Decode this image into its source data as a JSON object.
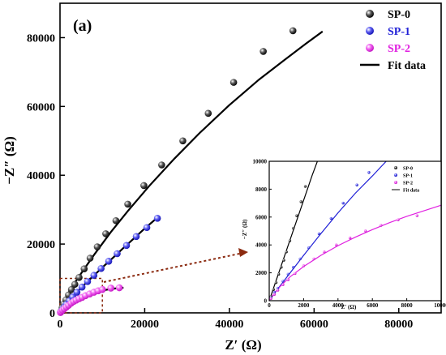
{
  "chart_data": [
    {
      "type": "scatter",
      "panel_label": "(a)",
      "xlabel": "Z′ (Ω)",
      "ylabel": "−Z″ (Ω)",
      "xlim": [
        0,
        90000
      ],
      "ylim": [
        0,
        90000
      ],
      "xticks": [
        0,
        20000,
        40000,
        60000,
        80000
      ],
      "yticks": [
        0,
        20000,
        40000,
        60000,
        80000
      ],
      "legend_placement": "top-right",
      "series": [
        {
          "name": "SP-0",
          "color": "#000000",
          "points": [
            [
              200,
              400
            ],
            [
              500,
              1500
            ],
            [
              900,
              2600
            ],
            [
              1400,
              3800
            ],
            [
              2000,
              5200
            ],
            [
              2700,
              6800
            ],
            [
              3500,
              8300
            ],
            [
              4500,
              10300
            ],
            [
              5700,
              12800
            ],
            [
              7100,
              15900
            ],
            [
              8800,
              19200
            ],
            [
              10800,
              23000
            ],
            [
              13200,
              26800
            ],
            [
              16000,
              31600
            ],
            [
              19800,
              37000
            ],
            [
              24000,
              43000
            ],
            [
              29000,
              50000
            ],
            [
              35000,
              58000
            ],
            [
              41000,
              67000
            ],
            [
              48000,
              76000
            ],
            [
              55000,
              82000
            ]
          ],
          "fit": [
            [
              0,
              0
            ],
            [
              1000,
              3500
            ],
            [
              2500,
              7000
            ],
            [
              5000,
              11500
            ],
            [
              8000,
              16800
            ],
            [
              12000,
              23500
            ],
            [
              16000,
              29600
            ],
            [
              21000,
              36800
            ],
            [
              27000,
              44800
            ],
            [
              33000,
              52300
            ],
            [
              40000,
              60400
            ],
            [
              47000,
              67800
            ],
            [
              53000,
              73500
            ],
            [
              58000,
              78200
            ],
            [
              62000,
              81800
            ]
          ]
        },
        {
          "name": "SP-1",
          "color": "#1f1fd6",
          "points": [
            [
              100,
              150
            ],
            [
              300,
              500
            ],
            [
              600,
              1000
            ],
            [
              1000,
              1700
            ],
            [
              1500,
              2500
            ],
            [
              2200,
              3500
            ],
            [
              3000,
              4600
            ],
            [
              4000,
              6000
            ],
            [
              5200,
              7500
            ],
            [
              6500,
              9100
            ],
            [
              8000,
              10900
            ],
            [
              9700,
              12900
            ],
            [
              11500,
              15000
            ],
            [
              13500,
              17200
            ],
            [
              15700,
              19600
            ],
            [
              18000,
              22200
            ],
            [
              20500,
              24800
            ],
            [
              23000,
              27500
            ]
          ],
          "fit": [
            [
              0,
              0
            ],
            [
              500,
              800
            ],
            [
              1500,
              2500
            ],
            [
              3000,
              4700
            ],
            [
              5000,
              7300
            ],
            [
              7500,
              10300
            ],
            [
              10000,
              13200
            ],
            [
              12500,
              16000
            ],
            [
              15000,
              18900
            ],
            [
              17500,
              21700
            ],
            [
              20000,
              24500
            ],
            [
              23000,
              27700
            ]
          ]
        },
        {
          "name": "SP-2",
          "color": "#e020e0",
          "points": [
            [
              100,
              100
            ],
            [
              300,
              400
            ],
            [
              600,
              800
            ],
            [
              1000,
              1200
            ],
            [
              1500,
              1700
            ],
            [
              2000,
              2200
            ],
            [
              2600,
              2800
            ],
            [
              3200,
              3300
            ],
            [
              3800,
              3700
            ],
            [
              4500,
              4100
            ],
            [
              5200,
              4500
            ],
            [
              6000,
              5000
            ],
            [
              7000,
              5500
            ],
            [
              8000,
              6000
            ],
            [
              9000,
              6400
            ],
            [
              10000,
              6800
            ],
            [
              12000,
              7200
            ],
            [
              14000,
              7300
            ]
          ],
          "fit": [
            [
              0,
              0
            ],
            [
              500,
              900
            ],
            [
              1000,
              1500
            ],
            [
              2000,
              2400
            ],
            [
              3000,
              3200
            ],
            [
              4000,
              3900
            ],
            [
              5000,
              4500
            ],
            [
              6000,
              5000
            ],
            [
              7000,
              5450
            ],
            [
              8000,
              5850
            ],
            [
              9000,
              6200
            ],
            [
              10000,
              6500
            ],
            [
              12000,
              6950
            ],
            [
              14000,
              7200
            ],
            [
              15000,
              7300
            ]
          ]
        }
      ],
      "legend": [
        {
          "label": "SP-0",
          "color": "#000000",
          "kind": "marker"
        },
        {
          "label": "SP-1",
          "color": "#1f1fd6",
          "kind": "marker"
        },
        {
          "label": "SP-2",
          "color": "#e020e0",
          "kind": "marker"
        },
        {
          "label": "Fit data",
          "color": "#000000",
          "kind": "line"
        }
      ],
      "zoom_box": {
        "xlim": [
          0,
          10000
        ],
        "ylim": [
          0,
          10000
        ]
      }
    },
    {
      "type": "scatter",
      "role": "inset",
      "xlabel": "Z′ (Ω)",
      "ylabel": "−Z″ (Ω)",
      "xlim": [
        0,
        10000
      ],
      "ylim": [
        0,
        10000
      ],
      "xticks": [
        0,
        2000,
        4000,
        6000,
        8000,
        10000
      ],
      "yticks": [
        0,
        2000,
        4000,
        6000,
        8000,
        10000
      ],
      "series": [
        {
          "name": "SP-0",
          "color": "#000000",
          "points": [
            [
              100,
              300
            ],
            [
              250,
              800
            ],
            [
              400,
              1300
            ],
            [
              550,
              1900
            ],
            [
              700,
              2400
            ],
            [
              850,
              2900
            ],
            [
              1000,
              3500
            ],
            [
              1200,
              4300
            ],
            [
              1400,
              5200
            ],
            [
              1600,
              6100
            ],
            [
              1850,
              7100
            ],
            [
              2100,
              8200
            ]
          ],
          "fit": [
            [
              0,
              0
            ],
            [
              500,
              1800
            ],
            [
              1000,
              3600
            ],
            [
              1500,
              5400
            ],
            [
              2000,
              7200
            ],
            [
              2500,
              9000
            ],
            [
              2800,
              10000
            ]
          ]
        },
        {
          "name": "SP-1",
          "color": "#1f1fd6",
          "points": [
            [
              100,
              200
            ],
            [
              300,
              600
            ],
            [
              500,
              900
            ],
            [
              800,
              1400
            ],
            [
              1100,
              1900
            ],
            [
              1400,
              2400
            ],
            [
              1800,
              3000
            ],
            [
              2300,
              3800
            ],
            [
              2900,
              4800
            ],
            [
              3600,
              5900
            ],
            [
              4300,
              7000
            ],
            [
              5100,
              8300
            ],
            [
              5800,
              9200
            ]
          ],
          "fit": [
            [
              0,
              0
            ],
            [
              500,
              850
            ],
            [
              1000,
              1650
            ],
            [
              2000,
              3250
            ],
            [
              3000,
              4800
            ],
            [
              4000,
              6300
            ],
            [
              5000,
              7700
            ],
            [
              6000,
              8950
            ],
            [
              6800,
              10000
            ]
          ]
        },
        {
          "name": "SP-2",
          "color": "#e020e0",
          "points": [
            [
              100,
              150
            ],
            [
              300,
              450
            ],
            [
              500,
              750
            ],
            [
              800,
              1150
            ],
            [
              1100,
              1500
            ],
            [
              1500,
              1950
            ],
            [
              2000,
              2500
            ],
            [
              2600,
              3000
            ],
            [
              3200,
              3500
            ],
            [
              3900,
              4000
            ],
            [
              4700,
              4500
            ],
            [
              5600,
              5000
            ],
            [
              6500,
              5400
            ],
            [
              7500,
              5800
            ],
            [
              8600,
              6100
            ]
          ],
          "fit": [
            [
              0,
              0
            ],
            [
              300,
              550
            ],
            [
              700,
              1100
            ],
            [
              1200,
              1700
            ],
            [
              2000,
              2450
            ],
            [
              3000,
              3250
            ],
            [
              4000,
              3950
            ],
            [
              5000,
              4550
            ],
            [
              6000,
              5100
            ],
            [
              7000,
              5600
            ],
            [
              8000,
              6050
            ],
            [
              9000,
              6450
            ],
            [
              10000,
              6850
            ]
          ]
        }
      ],
      "legend": [
        {
          "label": "SP-0",
          "color": "#000000",
          "kind": "marker"
        },
        {
          "label": "SP-1",
          "color": "#1f1fd6",
          "kind": "marker"
        },
        {
          "label": "SP-2",
          "color": "#e020e0",
          "kind": "marker"
        },
        {
          "label": "Fit data",
          "color": "#000000",
          "kind": "line"
        }
      ]
    }
  ]
}
